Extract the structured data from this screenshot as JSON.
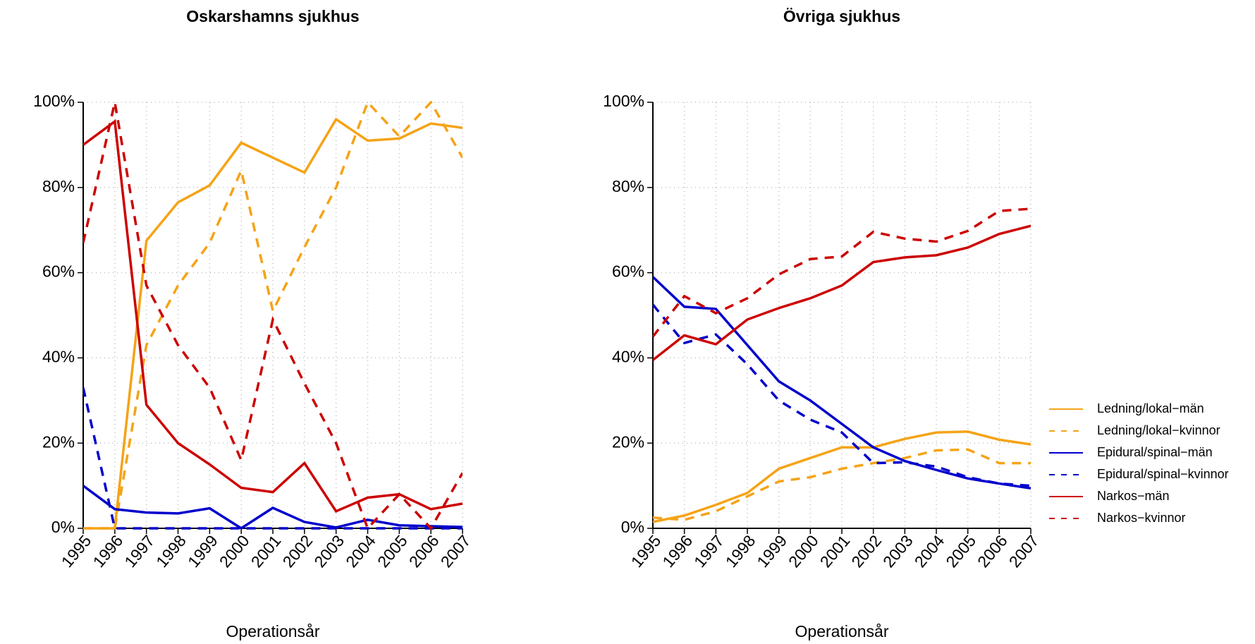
{
  "chart_data": [
    {
      "type": "line",
      "title": "Oskarshamns sjukhus",
      "xlabel": "Operationsår",
      "x": [
        1995,
        1996,
        1997,
        1998,
        1999,
        2000,
        2001,
        2002,
        2003,
        2004,
        2005,
        2006,
        2007
      ],
      "xlim": [
        1995,
        2007
      ],
      "xticks": [
        1995,
        1996,
        1997,
        1998,
        1999,
        2000,
        2001,
        2002,
        2003,
        2004,
        2005,
        2006,
        2007
      ],
      "ylim": [
        0,
        100
      ],
      "yticks": [
        {
          "value": 0,
          "label": "0%"
        },
        {
          "value": 20,
          "label": "20%"
        },
        {
          "value": 40,
          "label": "40%"
        },
        {
          "value": 60,
          "label": "60%"
        },
        {
          "value": 80,
          "label": "80%"
        },
        {
          "value": 100,
          "label": "100%"
        }
      ],
      "grid": true,
      "legend": false,
      "series": [
        {
          "name": "Ledning/lokal−män",
          "color": "#f5a316",
          "dash": false,
          "values": [
            0,
            0,
            67.5,
            76.5,
            80.5,
            90.5,
            87,
            83.5,
            96,
            91,
            91.5,
            95,
            94
          ]
        },
        {
          "name": "Ledning/lokal−kvinnor",
          "color": "#f5a316",
          "dash": true,
          "values": [
            0,
            0,
            43,
            57,
            67,
            84,
            51,
            66,
            80,
            100,
            92,
            100,
            87
          ]
        },
        {
          "name": "Epidural/spinal−män",
          "color": "#0000cc",
          "dash": false,
          "values": [
            10,
            4.5,
            3.7,
            3.5,
            4.7,
            0,
            4.8,
            1.5,
            0.2,
            2,
            0.7,
            0.5,
            0.3
          ]
        },
        {
          "name": "Epidural/spinal−kvinnor",
          "color": "#0000cc",
          "dash": true,
          "values": [
            33,
            0,
            0,
            0,
            0,
            0,
            0,
            0,
            0,
            0,
            0,
            0,
            0
          ]
        },
        {
          "name": "Narkos−män",
          "color": "#cc0000",
          "dash": false,
          "values": [
            90,
            95.5,
            29,
            20,
            15,
            9.5,
            8.5,
            15.3,
            4,
            7.2,
            8,
            4.5,
            5.8
          ]
        },
        {
          "name": "Narkos−kvinnor",
          "color": "#cc0000",
          "dash": true,
          "values": [
            67,
            100,
            57,
            43,
            33,
            16,
            49,
            34,
            20,
            0,
            8,
            0,
            13
          ]
        }
      ]
    },
    {
      "type": "line",
      "title": "Övriga sjukhus",
      "xlabel": "Operationsår",
      "x": [
        1995,
        1996,
        1997,
        1998,
        1999,
        2000,
        2001,
        2002,
        2003,
        2004,
        2005,
        2006,
        2007
      ],
      "xlim": [
        1995,
        2007
      ],
      "xticks": [
        1995,
        1996,
        1997,
        1998,
        1999,
        2000,
        2001,
        2002,
        2003,
        2004,
        2005,
        2006,
        2007
      ],
      "ylim": [
        0,
        100
      ],
      "yticks": [
        {
          "value": 0,
          "label": "0%"
        },
        {
          "value": 20,
          "label": "20%"
        },
        {
          "value": 40,
          "label": "40%"
        },
        {
          "value": 60,
          "label": "60%"
        },
        {
          "value": 80,
          "label": "80%"
        },
        {
          "value": 100,
          "label": "100%"
        }
      ],
      "grid": true,
      "legend": "right",
      "series": [
        {
          "name": "Ledning/lokal−män",
          "color": "#f5a316",
          "dash": false,
          "values": [
            1.5,
            3,
            5.5,
            8.3,
            14,
            16.5,
            19,
            19,
            21,
            22.5,
            22.7,
            20.8,
            19.7
          ]
        },
        {
          "name": "Ledning/lokal−kvinnor",
          "color": "#f5a316",
          "dash": true,
          "values": [
            2.5,
            2,
            4,
            7.5,
            11,
            12,
            14,
            15.3,
            16.5,
            18.3,
            18.5,
            15.3,
            15.3
          ]
        },
        {
          "name": "Epidural/spinal−män",
          "color": "#0000cc",
          "dash": false,
          "values": [
            59,
            52,
            51.5,
            43,
            34.5,
            30,
            24.5,
            19,
            15.8,
            13.7,
            11.7,
            10.5,
            9.4
          ]
        },
        {
          "name": "Epidural/spinal−kvinnor",
          "color": "#0000cc",
          "dash": true,
          "values": [
            52.5,
            43.5,
            45.5,
            38.5,
            30,
            25.5,
            22.5,
            15.3,
            15.5,
            14.5,
            12,
            10.5,
            10
          ]
        },
        {
          "name": "Narkos−män",
          "color": "#cc0000",
          "dash": false,
          "values": [
            39.5,
            45.3,
            43.2,
            49,
            51.7,
            54,
            57,
            62.5,
            63.6,
            64.1,
            65.9,
            69.1,
            71
          ]
        },
        {
          "name": "Narkos−kvinnor",
          "color": "#cc0000",
          "dash": true,
          "values": [
            45,
            54.5,
            50.5,
            54,
            59.6,
            63.2,
            63.8,
            69.6,
            68,
            67.3,
            69.8,
            74.5,
            75
          ]
        }
      ]
    }
  ]
}
